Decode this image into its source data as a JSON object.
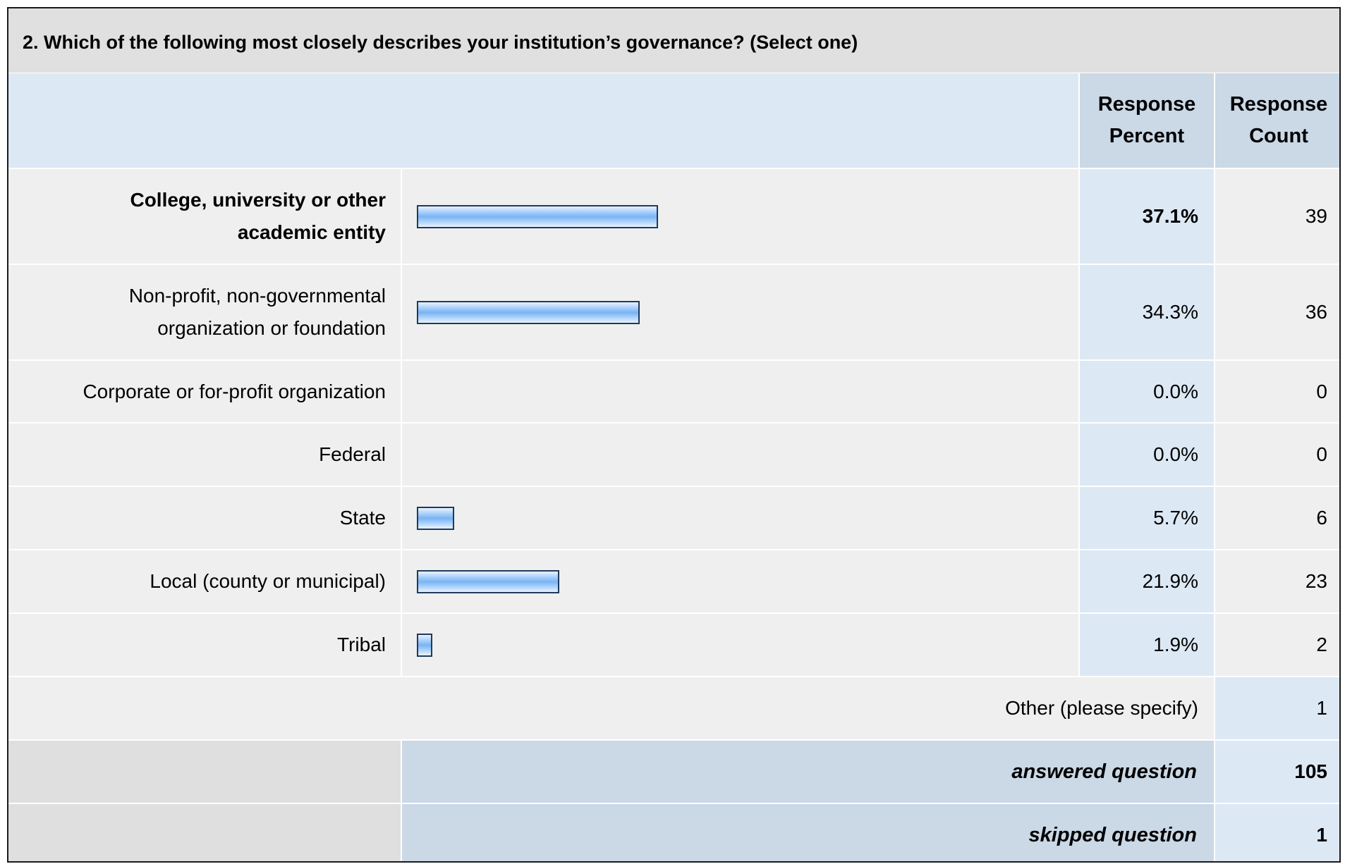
{
  "question": {
    "title": "2. Which of the following most closely describes your institution’s governance? (Select one)"
  },
  "headers": {
    "response_percent_line1": "Response",
    "response_percent_line2": "Percent",
    "response_count_line1": "Response",
    "response_count_line2": "Count"
  },
  "chart_data": {
    "type": "bar",
    "orientation": "horizontal",
    "title": "2. Which of the following most closely describes your institution’s governance? (Select one)",
    "categories": [
      "College, university or other academic entity",
      "Non-profit, non-governmental organization or foundation",
      "Corporate or for-profit organization",
      "Federal",
      "State",
      "Local (county or municipal)",
      "Tribal"
    ],
    "series": [
      {
        "name": "Response Percent",
        "values": [
          37.1,
          34.3,
          0.0,
          0.0,
          5.7,
          21.9,
          1.9
        ]
      },
      {
        "name": "Response Count",
        "values": [
          39,
          36,
          0,
          0,
          6,
          23,
          2
        ]
      }
    ],
    "xlim": [
      0,
      100
    ]
  },
  "rows": [
    {
      "label_line1": "College, university or other",
      "label_line2": "academic entity",
      "percent": "37.1%",
      "count": "39"
    },
    {
      "label_line1": "Non-profit, non-governmental",
      "label_line2": "organization or foundation",
      "percent": "34.3%",
      "count": "36"
    },
    {
      "label_line1": "Corporate or for-profit organization",
      "label_line2": "",
      "percent": "0.0%",
      "count": "0"
    },
    {
      "label_line1": "Federal",
      "label_line2": "",
      "percent": "0.0%",
      "count": "0"
    },
    {
      "label_line1": "State",
      "label_line2": "",
      "percent": "5.7%",
      "count": "6"
    },
    {
      "label_line1": "Local (county or municipal)",
      "label_line2": "",
      "percent": "21.9%",
      "count": "23"
    },
    {
      "label_line1": "Tribal",
      "label_line2": "",
      "percent": "1.9%",
      "count": "2"
    }
  ],
  "other": {
    "label": "Other (please specify)",
    "count": "1"
  },
  "summary": {
    "answered_label": "answered question",
    "answered_count": "105",
    "skipped_label": "skipped question",
    "skipped_count": "1"
  }
}
